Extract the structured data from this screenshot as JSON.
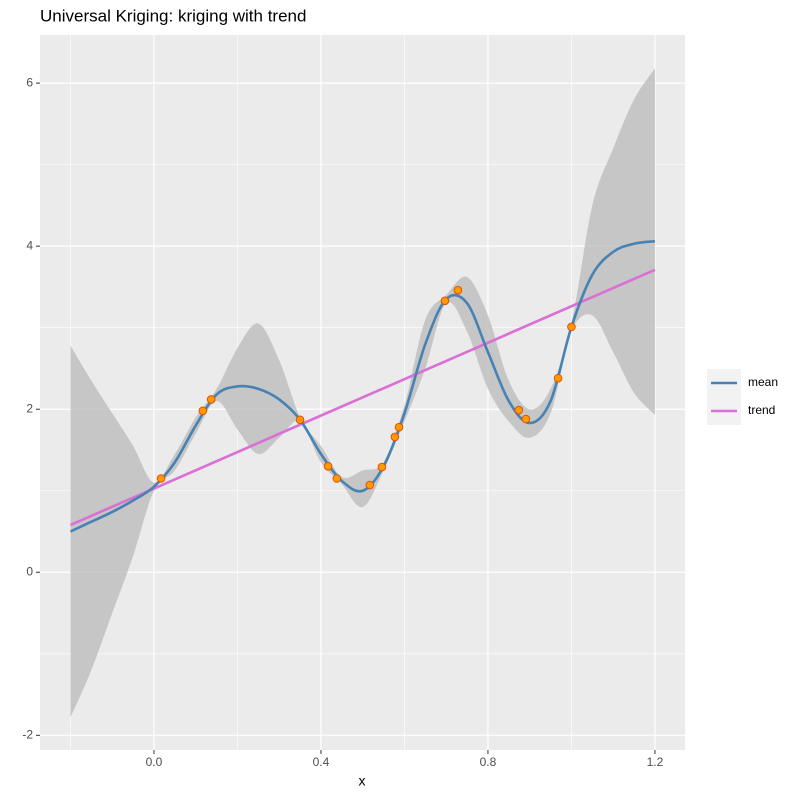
{
  "chart_data": {
    "type": "line",
    "title": "Universal Kriging: kriging with trend",
    "x_label": "x",
    "xlim": [
      -0.273,
      1.272
    ],
    "ylim": [
      -2.18,
      6.59
    ],
    "xticks": [
      {
        "value": 0,
        "label": "0.0"
      },
      0.4,
      0.8,
      1.2
    ],
    "yticks": [
      -2,
      0,
      2,
      4,
      6
    ],
    "xminor": [
      -0.2,
      0.2,
      0.6,
      1.0
    ],
    "yminor": [
      -1,
      1,
      3,
      5
    ],
    "grid": true,
    "legend_position": "right",
    "x": [
      -0.2,
      -0.15,
      -0.1,
      -0.05,
      0.0,
      0.05,
      0.1,
      0.15,
      0.2,
      0.25,
      0.3,
      0.35,
      0.4,
      0.45,
      0.5,
      0.55,
      0.6,
      0.65,
      0.7,
      0.75,
      0.8,
      0.85,
      0.9,
      0.95,
      1.0,
      1.05,
      1.1,
      1.15,
      1.2
    ],
    "ribbon": {
      "color": "#bdbdbd",
      "lower": [
        -1.78,
        -1.2,
        -0.5,
        0.2,
        1.0,
        1.25,
        1.7,
        2.1,
        1.75,
        1.45,
        1.65,
        1.85,
        1.35,
        1.08,
        0.8,
        1.25,
        1.85,
        2.5,
        3.3,
        2.95,
        2.25,
        1.85,
        1.65,
        1.95,
        2.95,
        3.15,
        2.7,
        2.2,
        1.93
      ],
      "upper": [
        2.78,
        2.35,
        1.95,
        1.55,
        1.1,
        1.45,
        1.9,
        2.25,
        2.75,
        3.05,
        2.6,
        1.9,
        1.55,
        1.17,
        1.25,
        1.35,
        2.05,
        3.1,
        3.4,
        3.62,
        3.15,
        2.35,
        2.0,
        2.25,
        3.05,
        4.5,
        5.2,
        5.8,
        6.18
      ]
    },
    "series": [
      {
        "name": "mean",
        "color": "#4682b4",
        "values": [
          0.5,
          0.62,
          0.74,
          0.88,
          1.05,
          1.35,
          1.8,
          2.18,
          2.28,
          2.25,
          2.12,
          1.87,
          1.45,
          1.12,
          1.0,
          1.3,
          1.95,
          2.8,
          3.35,
          3.3,
          2.7,
          2.1,
          1.83,
          2.1,
          3.01,
          3.65,
          3.93,
          4.03,
          4.06
        ]
      },
      {
        "name": "trend",
        "color": "#da70d6",
        "x": [
          -0.2,
          1.2
        ],
        "values": [
          0.58,
          3.71
        ]
      }
    ],
    "points": {
      "color": "#ff9a00",
      "stroke": "#e0500a",
      "x": [
        0.017,
        0.117,
        0.137,
        0.35,
        0.417,
        0.438,
        0.517,
        0.546,
        0.577,
        0.587,
        0.697,
        0.728,
        0.874,
        0.891,
        0.968,
        1.0
      ],
      "y": [
        1.15,
        1.98,
        2.12,
        1.87,
        1.3,
        1.15,
        1.07,
        1.29,
        1.66,
        1.78,
        3.33,
        3.46,
        1.99,
        1.88,
        2.38,
        3.01
      ]
    }
  }
}
